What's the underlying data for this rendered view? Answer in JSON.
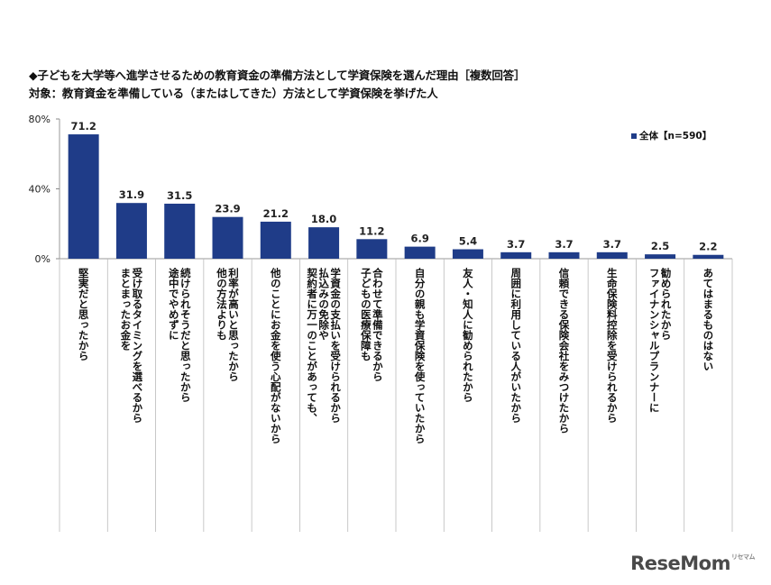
{
  "title_line1": "◆子どもを大学等へ進学させるための教育資金の準備方法として学資保険を選んだ理由［複数回答］",
  "title_line2": "対象：教育資金を準備している（またはしてきた）方法として学資保険を挙げた人",
  "watermark": "ReseMom",
  "watermark_small": "リセマム",
  "colors": {
    "bar": "#1f3c88",
    "axis": "#999999",
    "text": "#111111"
  },
  "chart_data": {
    "type": "bar",
    "title": "",
    "xlabel": "",
    "ylabel": "",
    "ylim": [
      0,
      80
    ],
    "yticks": [
      0,
      40,
      80
    ],
    "ytick_labels": [
      "0%",
      "40%",
      "80%"
    ],
    "legend": {
      "position": "top-right"
    },
    "categories": [
      "堅実だと思ったから",
      "まとまったお金を受け取るタイミングを選べるから",
      "途中でやめずに続けられそうだと思ったから",
      "他の方法よりも利率が高いと思ったから",
      "他のことにお金を使う心配がないから",
      "契約者に万一のことがあっても、払込みの免除や学資金の支払いを受けられるから",
      "子どもの医療保障も合わせて準備できるから",
      "自分の親も学資保険を使っていたから",
      "友人・知人に勧められたから",
      "周囲に利用している人がいたから",
      "信頼できる保険会社をみつけたから",
      "生命保険料控除を受けられるから",
      "ファイナンシャルプランナーに勧められたから",
      "あてはまるものはない"
    ],
    "category_label_columns": [
      [
        "堅実だと思ったから"
      ],
      [
        "まとまったお金を",
        "受け取るタイミングを選べるから"
      ],
      [
        "途中でやめずに",
        "続けられそうだと思ったから"
      ],
      [
        "他の方法よりも",
        "利率が高いと思ったから"
      ],
      [
        "他のことにお金を使う心配がないから"
      ],
      [
        "契約者に万一のことがあっても、",
        "払込みの免除や",
        "学資金の支払いを受けられるから"
      ],
      [
        "子どもの医療保障も",
        "合わせて準備できるから"
      ],
      [
        "自分の親も学資保険を使っていたから"
      ],
      [
        "友人・知人に勧められたから"
      ],
      [
        "周囲に利用している人がいたから"
      ],
      [
        "信頼できる保険会社をみつけたから"
      ],
      [
        "生命保険料控除を受けられるから"
      ],
      [
        "ファイナンシャルプランナーに",
        "勧められたから"
      ],
      [
        "あてはまるものはない"
      ]
    ],
    "series": [
      {
        "name": "全体【n=590】",
        "values": [
          71.2,
          31.9,
          31.5,
          23.9,
          21.2,
          18.0,
          11.2,
          6.9,
          5.4,
          3.7,
          3.7,
          3.7,
          2.5,
          2.2
        ],
        "data_labels": [
          "71.2",
          "31.9",
          "31.5",
          "23.9",
          "21.2",
          "18.0",
          "11.2",
          "6.9",
          "5.4",
          "3.7",
          "3.7",
          "3.7",
          "2.5",
          "2.2"
        ]
      }
    ]
  }
}
